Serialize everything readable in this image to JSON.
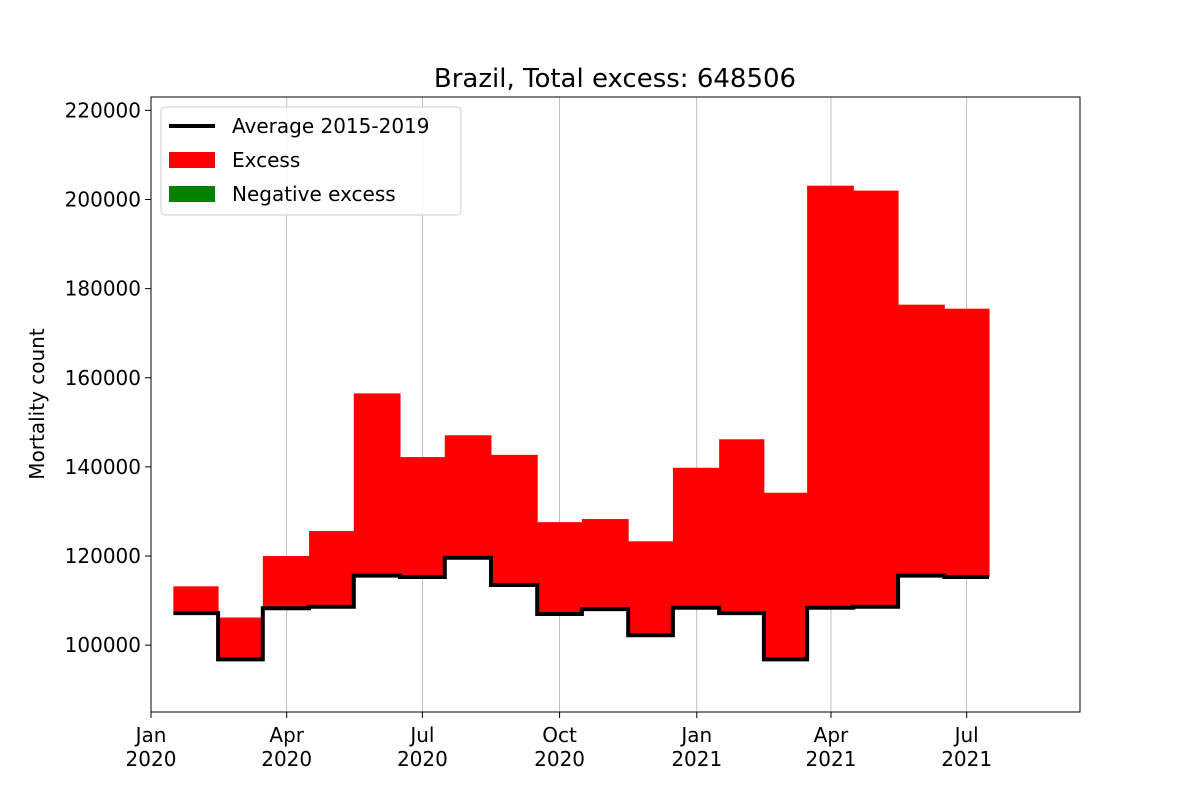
{
  "chart_data": {
    "type": "bar",
    "title": "Brazil, Total excess: 648506",
    "xlabel": "",
    "ylabel": "Mortality count",
    "ylim": [
      85000,
      223000
    ],
    "xlim": [
      "2020-01-01",
      "2021-09-15"
    ],
    "yticks": [
      100000,
      120000,
      140000,
      160000,
      180000,
      200000,
      220000
    ],
    "xticks": [
      {
        "date": "2020-01-01",
        "line1": "Jan",
        "line2": "2020"
      },
      {
        "date": "2020-04-01",
        "line1": "Apr",
        "line2": "2020"
      },
      {
        "date": "2020-07-01",
        "line1": "Jul",
        "line2": "2020"
      },
      {
        "date": "2020-10-01",
        "line1": "Oct",
        "line2": "2020"
      },
      {
        "date": "2021-01-01",
        "line1": "Jan",
        "line2": "2021"
      },
      {
        "date": "2021-04-01",
        "line1": "Apr",
        "line2": "2021"
      },
      {
        "date": "2021-07-01",
        "line1": "Jul",
        "line2": "2021"
      }
    ],
    "grid": "vertical",
    "legend_position": "top-left",
    "legend": [
      {
        "label": "Average 2015-2019",
        "kind": "line",
        "color": "#000000"
      },
      {
        "label": "Excess",
        "kind": "patch",
        "color": "#ff0000"
      },
      {
        "label": "Negative excess",
        "kind": "patch",
        "color": "#008000"
      }
    ],
    "x_edges": [
      "2020-01-16",
      "2020-02-15",
      "2020-03-16",
      "2020-04-16",
      "2020-05-16",
      "2020-06-16",
      "2020-07-16",
      "2020-08-16",
      "2020-09-16",
      "2020-10-16",
      "2020-11-16",
      "2020-12-16",
      "2021-01-16",
      "2021-02-15",
      "2021-03-16",
      "2021-04-16",
      "2021-05-16",
      "2021-06-16",
      "2021-07-16"
    ],
    "series": [
      {
        "name": "Average 2015-2019",
        "values": [
          107200,
          96800,
          108300,
          108600,
          115600,
          115300,
          119600,
          113500,
          107000,
          108100,
          102200,
          108400,
          107200,
          96800,
          108400,
          108600,
          115600,
          115300
        ]
      },
      {
        "name": "Excess",
        "values": [
          113200,
          106200,
          120000,
          125600,
          156500,
          142200,
          147100,
          142700,
          127600,
          128300,
          123300,
          139800,
          146200,
          134200,
          203100,
          202000,
          176400,
          175500
        ]
      }
    ]
  }
}
